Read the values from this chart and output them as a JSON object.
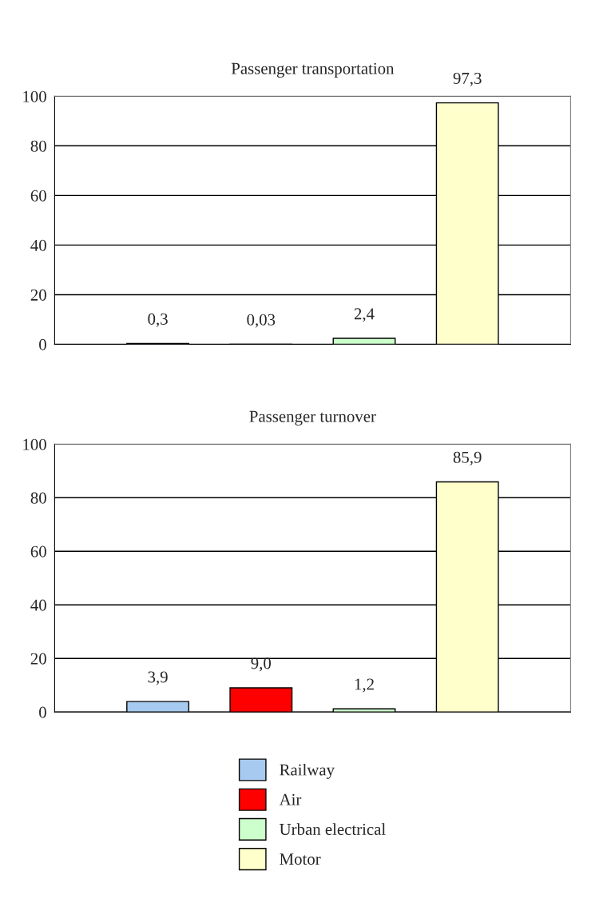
{
  "chart_data": [
    {
      "type": "bar",
      "title": "Passenger transportation",
      "categories": [
        null
      ],
      "ylim": [
        0,
        100
      ],
      "yticks": [
        0,
        20,
        40,
        60,
        80,
        100
      ],
      "grid": "y",
      "series": [
        {
          "color": "#a6caf0",
          "values": [
            0.3
          ],
          "value_labels": [
            "0,3"
          ]
        },
        {
          "color": "#ff0000",
          "values": [
            0.03
          ],
          "value_labels": [
            "0,03"
          ]
        },
        {
          "color": "#ccffcc",
          "values": [
            2.4
          ],
          "value_labels": [
            "2,4"
          ]
        },
        {
          "color": "#ffffcc",
          "values": [
            97.3
          ],
          "value_labels": [
            "97,3"
          ]
        }
      ]
    },
    {
      "type": "bar",
      "title": "Passenger turnover",
      "categories": [
        null
      ],
      "ylim": [
        0,
        100
      ],
      "yticks": [
        0,
        20,
        40,
        60,
        80,
        100
      ],
      "grid": "y",
      "legend": "bottom",
      "series": [
        {
          "name": "Railway",
          "color": "#a6caf0",
          "values": [
            3.9
          ],
          "value_labels": [
            "3,9"
          ]
        },
        {
          "name": "Air",
          "color": "#ff0000",
          "values": [
            9.0
          ],
          "value_labels": [
            "9,0"
          ]
        },
        {
          "name": "Urban electrical",
          "color": "#ccffcc",
          "values": [
            1.2
          ],
          "value_labels": [
            "1,2"
          ]
        },
        {
          "name": "Motor",
          "color": "#ffffcc",
          "values": [
            85.9
          ],
          "value_labels": [
            "85,9"
          ]
        }
      ]
    }
  ]
}
